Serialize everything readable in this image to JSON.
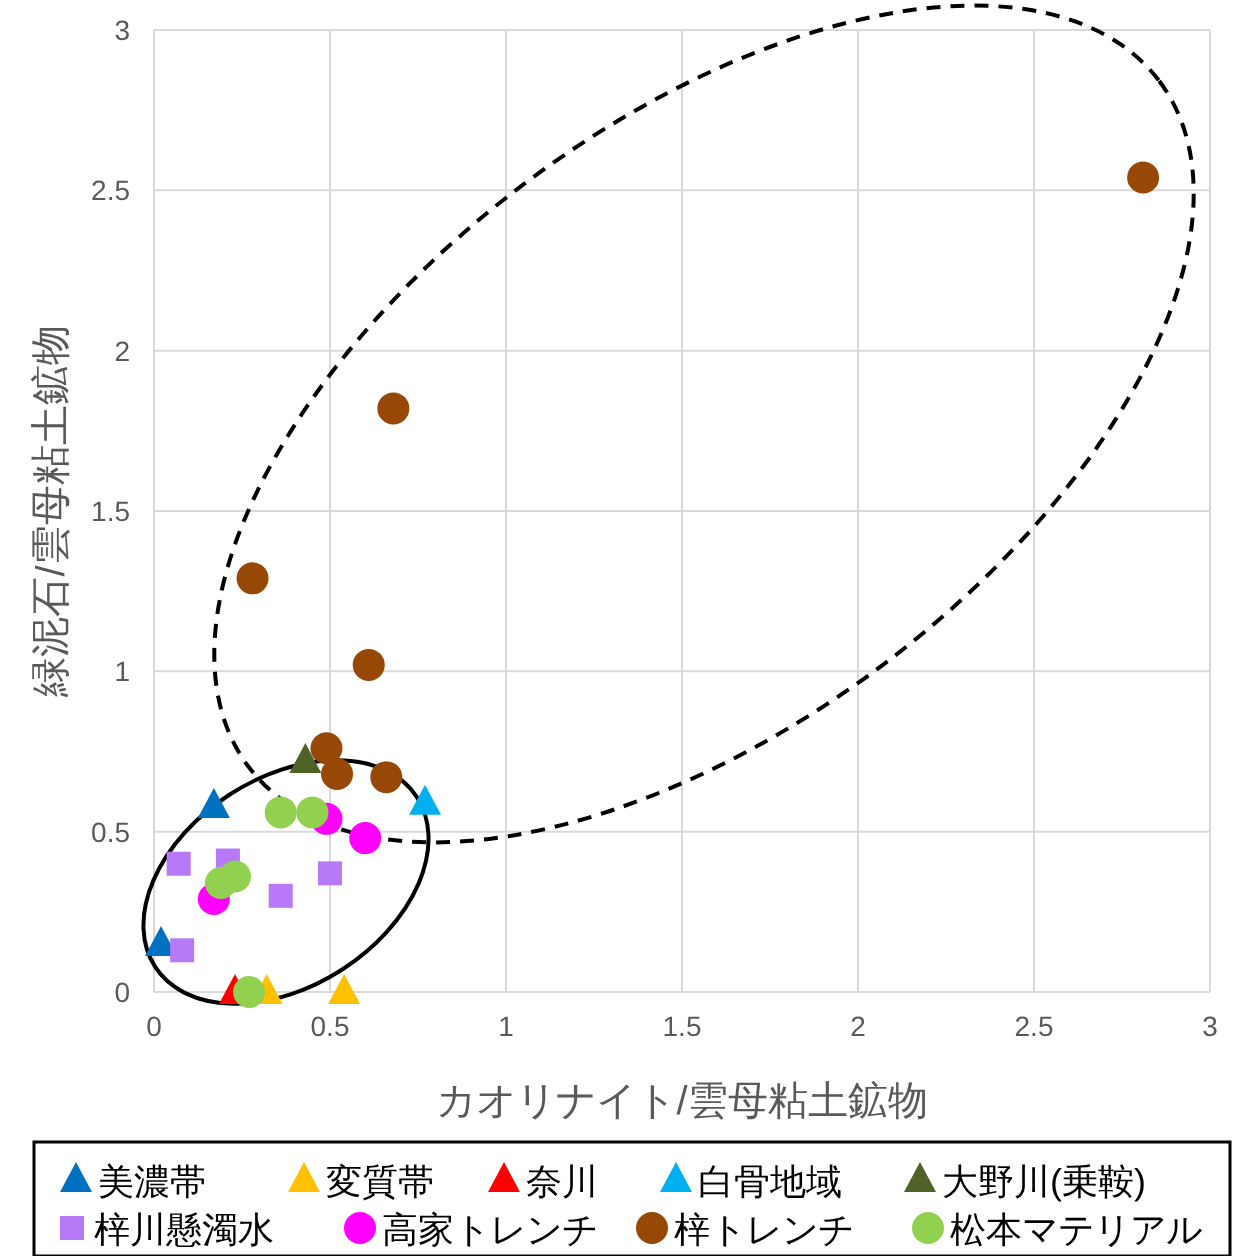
{
  "chart_data": {
    "type": "scatter",
    "xlabel": "カオリナイト/雲母粘土鉱物",
    "ylabel": "緑泥石/雲母粘土鉱物",
    "xlim": [
      0,
      3
    ],
    "ylim": [
      0,
      3
    ],
    "xticks": [
      0,
      0.5,
      1,
      1.5,
      2,
      2.5,
      3
    ],
    "yticks": [
      0,
      0.5,
      1,
      1.5,
      2,
      2.5,
      3
    ],
    "grid": true,
    "legend": "bottom",
    "series": [
      {
        "name": "美濃帯",
        "color": "#0070c0",
        "marker": "triangle",
        "x": [
          0.17,
          0.02
        ],
        "values": [
          0.58,
          0.15
        ]
      },
      {
        "name": "変質帯",
        "color": "#ffc000",
        "marker": "triangle",
        "x": [
          0.32,
          0.54
        ],
        "values": [
          0,
          0
        ]
      },
      {
        "name": "奈川",
        "color": "#ff0000",
        "marker": "triangle",
        "x": [
          0.23
        ],
        "values": [
          0
        ]
      },
      {
        "name": "白骨地域",
        "color": "#00b0f0",
        "marker": "triangle",
        "x": [
          0.77
        ],
        "values": [
          0.59
        ]
      },
      {
        "name": "大野川(乗鞍)",
        "color": "#4f6228",
        "marker": "triangle",
        "x": [
          0.43
        ],
        "values": [
          0.72
        ]
      },
      {
        "name": "梓川懸濁水",
        "color": "#b779f5",
        "marker": "square",
        "x": [
          0.07,
          0.21,
          0.36,
          0.5,
          0.08
        ],
        "values": [
          0.4,
          0.41,
          0.3,
          0.37,
          0.13
        ]
      },
      {
        "name": "高家トレンチ",
        "color": "#ff00ff",
        "marker": "circle",
        "x": [
          0.49,
          0.6,
          0.17
        ],
        "values": [
          0.54,
          0.48,
          0.29
        ]
      },
      {
        "name": "梓トレンチ",
        "color": "#974706",
        "marker": "circle",
        "x": [
          0.49,
          0.52,
          0.66,
          0.68,
          0.28,
          0.61,
          2.81
        ],
        "values": [
          0.76,
          0.68,
          0.67,
          1.82,
          1.29,
          1.02,
          2.54
        ]
      },
      {
        "name": "松本マテリアル",
        "color": "#92d050",
        "marker": "circle",
        "x": [
          0.36,
          0.45,
          0.19,
          0.23,
          0.27
        ],
        "values": [
          0.56,
          0.56,
          0.34,
          0.36,
          0
        ]
      }
    ]
  }
}
